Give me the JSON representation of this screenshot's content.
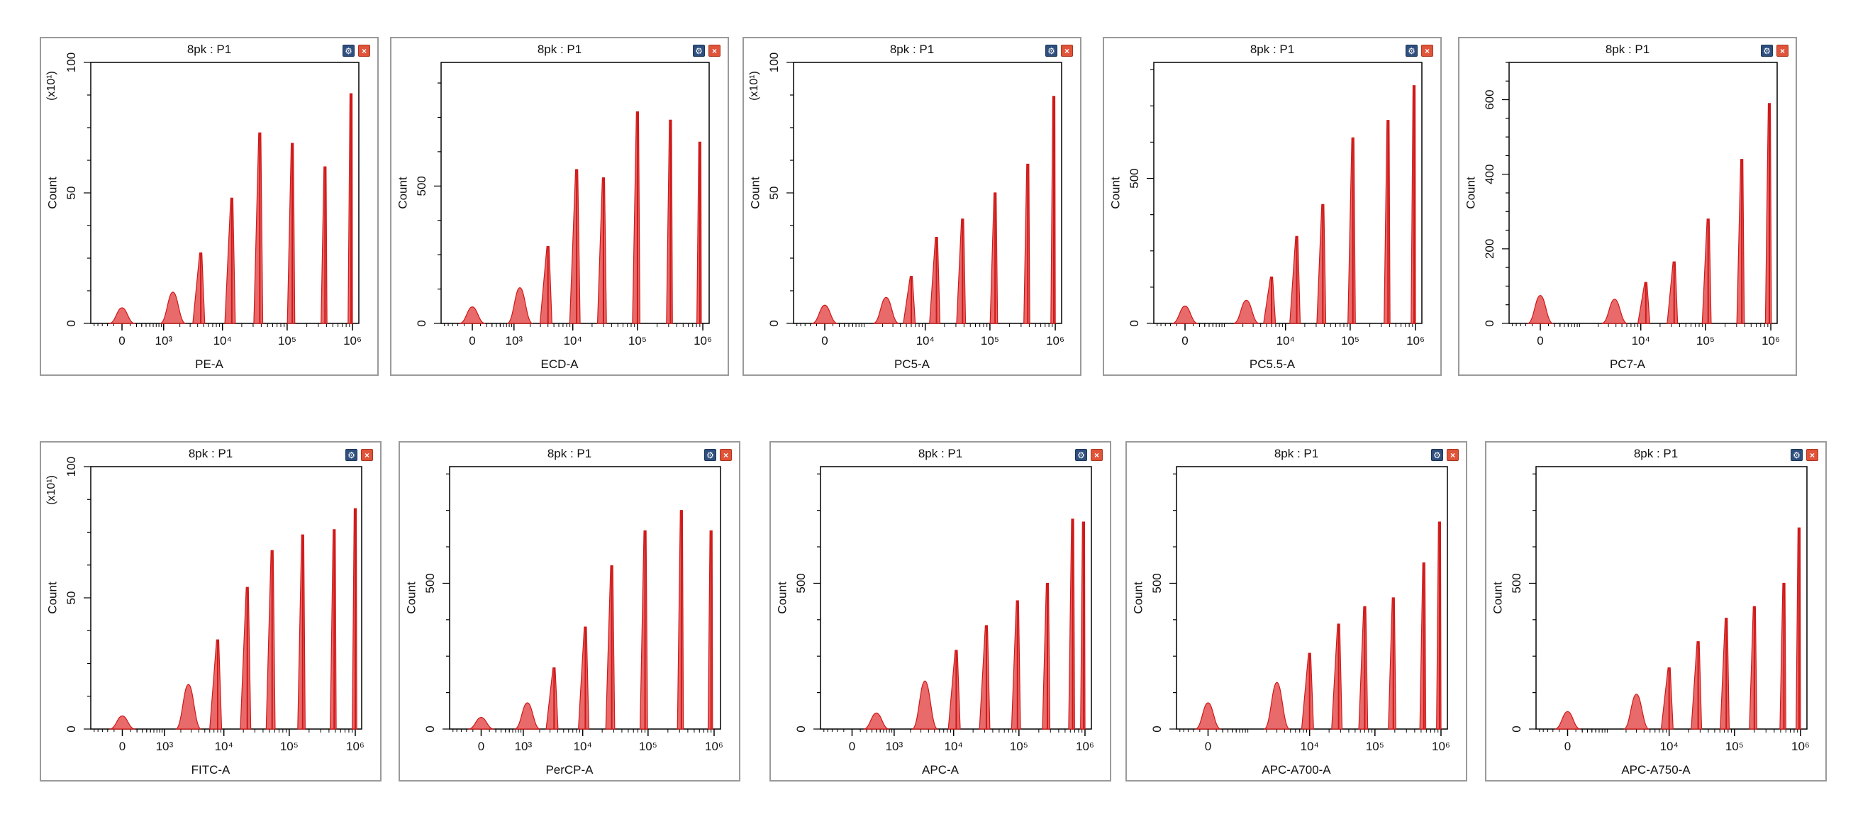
{
  "colors": {
    "peak": "#e86a6a",
    "peak_edge": "#d01818",
    "frame": "#9a9a9a",
    "option_icon": "#2f4f7e",
    "close_icon": "#e0543a"
  },
  "icons": {
    "options": "gear-icon",
    "close": "close-icon"
  },
  "scale_label": "(x10¹)",
  "chart_data": [
    {
      "type": "histogram",
      "title": "8pk : P1",
      "xlabel": "PE-A",
      "ylabel": "Count",
      "scale": "(x10¹)",
      "x_scale": "logicle",
      "xticks": [
        "0",
        "10³",
        "10⁴",
        "10⁵",
        "10⁶"
      ],
      "yticks": [
        "0",
        "50",
        "100"
      ],
      "ylim": [
        0,
        100
      ],
      "peaks": [
        {
          "x": 0,
          "y": 6
        },
        {
          "x": 1500,
          "y": 12
        },
        {
          "x": 4500,
          "y": 27
        },
        {
          "x": 14000,
          "y": 48
        },
        {
          "x": 38000,
          "y": 73
        },
        {
          "x": 120000,
          "y": 69
        },
        {
          "x": 380000,
          "y": 60
        },
        {
          "x": 950000,
          "y": 88
        }
      ]
    },
    {
      "type": "histogram",
      "title": "8pk : P1",
      "xlabel": "ECD-A",
      "ylabel": "Count",
      "x_scale": "logicle",
      "xticks": [
        "0",
        "10³",
        "10⁴",
        "10⁵",
        "10⁶"
      ],
      "yticks": [
        "0",
        "500"
      ],
      "ylim": [
        0,
        950
      ],
      "peaks": [
        {
          "x": 0,
          "y": 60
        },
        {
          "x": 1300,
          "y": 130
        },
        {
          "x": 4000,
          "y": 280
        },
        {
          "x": 11500,
          "y": 560
        },
        {
          "x": 30000,
          "y": 530
        },
        {
          "x": 100000,
          "y": 770
        },
        {
          "x": 320000,
          "y": 740
        },
        {
          "x": 900000,
          "y": 660
        }
      ]
    },
    {
      "type": "histogram",
      "title": "8pk : P1",
      "xlabel": "PC5-A",
      "ylabel": "Count",
      "scale": "(x10¹)",
      "x_scale": "logicle",
      "xticks": [
        "0",
        "10⁴",
        "10⁵",
        "10⁶"
      ],
      "yticks": [
        "0",
        "50",
        "100"
      ],
      "ylim": [
        0,
        100
      ],
      "peaks": [
        {
          "x": 0,
          "y": 7
        },
        {
          "x": 2300,
          "y": 10
        },
        {
          "x": 6000,
          "y": 18
        },
        {
          "x": 15000,
          "y": 33
        },
        {
          "x": 38000,
          "y": 40
        },
        {
          "x": 120000,
          "y": 50
        },
        {
          "x": 380000,
          "y": 61
        },
        {
          "x": 950000,
          "y": 87
        }
      ]
    },
    {
      "type": "histogram",
      "title": "8pk : P1",
      "xlabel": "PC5.5-A",
      "ylabel": "Count",
      "x_scale": "logicle",
      "xticks": [
        "0",
        "10⁴",
        "10⁵",
        "10⁶"
      ],
      "yticks": [
        "0",
        "500"
      ],
      "ylim": [
        0,
        900
      ],
      "peaks": [
        {
          "x": 0,
          "y": 60
        },
        {
          "x": 2300,
          "y": 80
        },
        {
          "x": 6000,
          "y": 160
        },
        {
          "x": 15000,
          "y": 300
        },
        {
          "x": 38000,
          "y": 410
        },
        {
          "x": 110000,
          "y": 640
        },
        {
          "x": 380000,
          "y": 700
        },
        {
          "x": 950000,
          "y": 820
        }
      ]
    },
    {
      "type": "histogram",
      "title": "8pk : P1",
      "xlabel": "PC7-A",
      "ylabel": "Count",
      "x_scale": "logicle",
      "xticks": [
        "0",
        "10⁴",
        "10⁵",
        "10⁶"
      ],
      "yticks": [
        "0",
        "200",
        "400",
        "600"
      ],
      "ylim": [
        0,
        700
      ],
      "peaks": [
        {
          "x": 0,
          "y": 75
        },
        {
          "x": 3800,
          "y": 65
        },
        {
          "x": 12000,
          "y": 110
        },
        {
          "x": 33000,
          "y": 165
        },
        {
          "x": 110000,
          "y": 280
        },
        {
          "x": 360000,
          "y": 440
        },
        {
          "x": 950000,
          "y": 590
        }
      ]
    },
    {
      "type": "histogram",
      "title": "8pk : P1",
      "xlabel": "FITC-A",
      "ylabel": "Count",
      "scale": "(x10¹)",
      "x_scale": "logicle",
      "xticks": [
        "0",
        "10³",
        "10⁴",
        "10⁵",
        "10⁶"
      ],
      "yticks": [
        "0",
        "50",
        "100"
      ],
      "ylim": [
        0,
        100
      ],
      "peaks": [
        {
          "x": 0,
          "y": 5
        },
        {
          "x": 2700,
          "y": 17
        },
        {
          "x": 8000,
          "y": 34
        },
        {
          "x": 23000,
          "y": 54
        },
        {
          "x": 55000,
          "y": 68
        },
        {
          "x": 160000,
          "y": 74
        },
        {
          "x": 480000,
          "y": 76
        },
        {
          "x": 1000000,
          "y": 84
        }
      ]
    },
    {
      "type": "histogram",
      "title": "8pk : P1",
      "xlabel": "PerCP-A",
      "ylabel": "Count",
      "x_scale": "logicle",
      "xticks": [
        "0",
        "10³",
        "10⁴",
        "10⁵",
        "10⁶"
      ],
      "yticks": [
        "0",
        "500"
      ],
      "ylim": [
        0,
        900
      ],
      "peaks": [
        {
          "x": 0,
          "y": 40
        },
        {
          "x": 1200,
          "y": 90
        },
        {
          "x": 3500,
          "y": 210
        },
        {
          "x": 11000,
          "y": 350
        },
        {
          "x": 28000,
          "y": 560
        },
        {
          "x": 90000,
          "y": 680
        },
        {
          "x": 320000,
          "y": 750
        },
        {
          "x": 900000,
          "y": 680
        }
      ]
    },
    {
      "type": "histogram",
      "title": "8pk : P1",
      "xlabel": "APC-A",
      "ylabel": "Count",
      "x_scale": "logicle",
      "xticks": [
        "0",
        "10³",
        "10⁴",
        "10⁵",
        "10⁶"
      ],
      "yticks": [
        "0",
        "500"
      ],
      "ylim": [
        0,
        900
      ],
      "peaks": [
        {
          "x": 400,
          "y": 55
        },
        {
          "x": 3500,
          "y": 165
        },
        {
          "x": 11000,
          "y": 270
        },
        {
          "x": 32000,
          "y": 355
        },
        {
          "x": 95000,
          "y": 440
        },
        {
          "x": 270000,
          "y": 500
        },
        {
          "x": 650000,
          "y": 720
        },
        {
          "x": 950000,
          "y": 710
        }
      ]
    },
    {
      "type": "histogram",
      "title": "8pk : P1",
      "xlabel": "APC-A700-A",
      "ylabel": "Count",
      "x_scale": "logicle",
      "xticks": [
        "0",
        "10⁴",
        "10⁵",
        "10⁶"
      ],
      "yticks": [
        "0",
        "500"
      ],
      "ylim": [
        0,
        900
      ],
      "peaks": [
        {
          "x": 0,
          "y": 90
        },
        {
          "x": 3000,
          "y": 160
        },
        {
          "x": 10000,
          "y": 260
        },
        {
          "x": 28000,
          "y": 360
        },
        {
          "x": 70000,
          "y": 420
        },
        {
          "x": 190000,
          "y": 450
        },
        {
          "x": 550000,
          "y": 570
        },
        {
          "x": 950000,
          "y": 710
        }
      ]
    },
    {
      "type": "histogram",
      "title": "8pk : P1",
      "xlabel": "APC-A750-A",
      "ylabel": "Count",
      "x_scale": "logicle",
      "xticks": [
        "0",
        "10⁴",
        "10⁵",
        "10⁶"
      ],
      "yticks": [
        "0",
        "500"
      ],
      "ylim": [
        0,
        900
      ],
      "peaks": [
        {
          "x": 0,
          "y": 60
        },
        {
          "x": 3000,
          "y": 120
        },
        {
          "x": 10000,
          "y": 210
        },
        {
          "x": 28000,
          "y": 300
        },
        {
          "x": 75000,
          "y": 380
        },
        {
          "x": 200000,
          "y": 420
        },
        {
          "x": 560000,
          "y": 500
        },
        {
          "x": 950000,
          "y": 690
        }
      ]
    }
  ]
}
